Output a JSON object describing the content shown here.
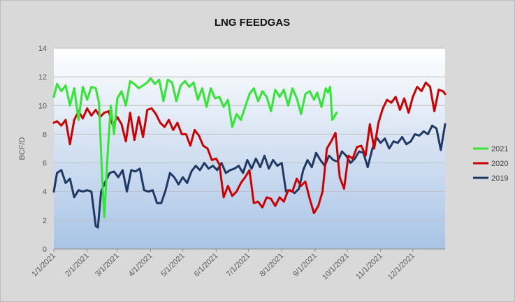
{
  "chart_data": {
    "type": "line",
    "title": "LNG FEEDGAS",
    "xlabel": "",
    "ylabel": "BCF/D",
    "ylim": [
      0,
      14
    ],
    "y_ticks": [
      "0",
      "2",
      "4",
      "6",
      "8",
      "10",
      "12",
      "14"
    ],
    "x_ticks": [
      "1/1/2021",
      "2/1/2021",
      "3/1/2021",
      "4/1/2021",
      "5/1/2021",
      "6/1/2021",
      "7/1/2021",
      "8/1/2021",
      "9/1/2021",
      "10/1/2021",
      "11/1/2021",
      "12/1/2021"
    ],
    "grid": true,
    "legend_position": "right",
    "plot_background": "gradient white-to-light-blue",
    "series": [
      {
        "name": "2021",
        "color": "#33e633",
        "points": [
          [
            "2021-01-01",
            10.6
          ],
          [
            "2021-01-04",
            11.5
          ],
          [
            "2021-01-08",
            11.0
          ],
          [
            "2021-01-12",
            11.4
          ],
          [
            "2021-01-16",
            10.0
          ],
          [
            "2021-01-20",
            11.2
          ],
          [
            "2021-01-24",
            9.0
          ],
          [
            "2021-01-28",
            11.3
          ],
          [
            "2021-02-01",
            10.4
          ],
          [
            "2021-02-05",
            11.3
          ],
          [
            "2021-02-09",
            11.2
          ],
          [
            "2021-02-12",
            10.2
          ],
          [
            "2021-02-15",
            5.0
          ],
          [
            "2021-02-17",
            2.2
          ],
          [
            "2021-02-20",
            6.5
          ],
          [
            "2021-02-23",
            10.0
          ],
          [
            "2021-02-26",
            8.0
          ],
          [
            "2021-03-01",
            10.5
          ],
          [
            "2021-03-05",
            11.0
          ],
          [
            "2021-03-09",
            10.0
          ],
          [
            "2021-03-13",
            11.7
          ],
          [
            "2021-03-17",
            11.5
          ],
          [
            "2021-03-21",
            11.2
          ],
          [
            "2021-03-25",
            11.4
          ],
          [
            "2021-03-29",
            11.6
          ],
          [
            "2021-04-01",
            11.9
          ],
          [
            "2021-04-05",
            11.5
          ],
          [
            "2021-04-09",
            11.8
          ],
          [
            "2021-04-13",
            10.3
          ],
          [
            "2021-04-17",
            11.8
          ],
          [
            "2021-04-21",
            11.6
          ],
          [
            "2021-04-25",
            10.3
          ],
          [
            "2021-04-29",
            11.4
          ],
          [
            "2021-05-03",
            11.7
          ],
          [
            "2021-05-07",
            11.3
          ],
          [
            "2021-05-11",
            11.6
          ],
          [
            "2021-05-15",
            10.4
          ],
          [
            "2021-05-19",
            11.2
          ],
          [
            "2021-05-23",
            9.9
          ],
          [
            "2021-05-27",
            11.2
          ],
          [
            "2021-05-31",
            10.5
          ],
          [
            "2021-06-04",
            10.6
          ],
          [
            "2021-06-08",
            9.9
          ],
          [
            "2021-06-12",
            10.4
          ],
          [
            "2021-06-16",
            8.5
          ],
          [
            "2021-06-20",
            9.4
          ],
          [
            "2021-06-24",
            9.0
          ],
          [
            "2021-06-28",
            9.9
          ],
          [
            "2021-07-02",
            10.8
          ],
          [
            "2021-07-06",
            11.2
          ],
          [
            "2021-07-10",
            10.3
          ],
          [
            "2021-07-14",
            11.0
          ],
          [
            "2021-07-18",
            10.6
          ],
          [
            "2021-07-22",
            9.6
          ],
          [
            "2021-07-26",
            11.1
          ],
          [
            "2021-07-30",
            10.6
          ],
          [
            "2021-08-03",
            11.1
          ],
          [
            "2021-08-07",
            10.0
          ],
          [
            "2021-08-11",
            11.2
          ],
          [
            "2021-08-15",
            10.5
          ],
          [
            "2021-08-19",
            9.4
          ],
          [
            "2021-08-23",
            10.8
          ],
          [
            "2021-08-27",
            11.0
          ],
          [
            "2021-08-31",
            10.4
          ],
          [
            "2021-09-03",
            10.9
          ],
          [
            "2021-09-07",
            9.9
          ],
          [
            "2021-09-11",
            11.2
          ],
          [
            "2021-09-13",
            10.9
          ],
          [
            "2021-09-15",
            11.3
          ],
          [
            "2021-09-17",
            9.0
          ],
          [
            "2021-09-19",
            9.2
          ],
          [
            "2021-09-21",
            9.5
          ]
        ]
      },
      {
        "name": "2020",
        "color": "#cc0000",
        "points": [
          [
            "2021-01-01",
            8.8
          ],
          [
            "2021-01-04",
            8.9
          ],
          [
            "2021-01-08",
            8.6
          ],
          [
            "2021-01-12",
            9.0
          ],
          [
            "2021-01-16",
            7.3
          ],
          [
            "2021-01-20",
            9.0
          ],
          [
            "2021-01-24",
            9.6
          ],
          [
            "2021-01-28",
            9.1
          ],
          [
            "2021-02-01",
            9.8
          ],
          [
            "2021-02-05",
            9.3
          ],
          [
            "2021-02-09",
            9.7
          ],
          [
            "2021-02-13",
            9.2
          ],
          [
            "2021-02-17",
            9.5
          ],
          [
            "2021-02-21",
            9.6
          ],
          [
            "2021-02-25",
            8.6
          ],
          [
            "2021-03-01",
            9.2
          ],
          [
            "2021-03-05",
            8.7
          ],
          [
            "2021-03-09",
            7.5
          ],
          [
            "2021-03-13",
            9.5
          ],
          [
            "2021-03-17",
            7.6
          ],
          [
            "2021-03-21",
            9.2
          ],
          [
            "2021-03-25",
            7.8
          ],
          [
            "2021-03-29",
            9.7
          ],
          [
            "2021-04-02",
            9.8
          ],
          [
            "2021-04-06",
            9.4
          ],
          [
            "2021-04-10",
            8.8
          ],
          [
            "2021-04-14",
            8.5
          ],
          [
            "2021-04-18",
            9.0
          ],
          [
            "2021-04-22",
            8.3
          ],
          [
            "2021-04-26",
            8.8
          ],
          [
            "2021-04-30",
            8.0
          ],
          [
            "2021-05-04",
            8.0
          ],
          [
            "2021-05-08",
            7.2
          ],
          [
            "2021-05-12",
            8.3
          ],
          [
            "2021-05-16",
            7.9
          ],
          [
            "2021-05-20",
            7.2
          ],
          [
            "2021-05-24",
            7.0
          ],
          [
            "2021-05-28",
            6.2
          ],
          [
            "2021-06-01",
            6.3
          ],
          [
            "2021-06-04",
            5.9
          ],
          [
            "2021-06-08",
            3.6
          ],
          [
            "2021-06-12",
            4.4
          ],
          [
            "2021-06-16",
            3.7
          ],
          [
            "2021-06-20",
            4.0
          ],
          [
            "2021-06-24",
            4.6
          ],
          [
            "2021-06-28",
            5.0
          ],
          [
            "2021-07-02",
            5.5
          ],
          [
            "2021-07-06",
            3.2
          ],
          [
            "2021-07-10",
            3.3
          ],
          [
            "2021-07-14",
            2.9
          ],
          [
            "2021-07-18",
            3.6
          ],
          [
            "2021-07-22",
            3.5
          ],
          [
            "2021-07-26",
            3.0
          ],
          [
            "2021-07-30",
            3.6
          ],
          [
            "2021-08-03",
            3.3
          ],
          [
            "2021-08-07",
            4.1
          ],
          [
            "2021-08-11",
            4.0
          ],
          [
            "2021-08-15",
            4.9
          ],
          [
            "2021-08-19",
            4.4
          ],
          [
            "2021-08-23",
            4.7
          ],
          [
            "2021-08-27",
            3.5
          ],
          [
            "2021-08-31",
            2.5
          ],
          [
            "2021-09-04",
            3.0
          ],
          [
            "2021-09-08",
            4.0
          ],
          [
            "2021-09-12",
            7.0
          ],
          [
            "2021-09-16",
            7.5
          ],
          [
            "2021-09-20",
            8.1
          ],
          [
            "2021-09-24",
            5.0
          ],
          [
            "2021-09-28",
            4.2
          ],
          [
            "2021-10-02",
            6.5
          ],
          [
            "2021-10-06",
            6.3
          ],
          [
            "2021-10-10",
            7.1
          ],
          [
            "2021-10-14",
            7.2
          ],
          [
            "2021-10-18",
            6.5
          ],
          [
            "2021-10-22",
            8.7
          ],
          [
            "2021-10-26",
            7.0
          ],
          [
            "2021-10-30",
            8.8
          ],
          [
            "2021-11-03",
            9.8
          ],
          [
            "2021-11-07",
            10.4
          ],
          [
            "2021-11-11",
            10.2
          ],
          [
            "2021-11-15",
            10.6
          ],
          [
            "2021-11-19",
            9.7
          ],
          [
            "2021-11-23",
            10.5
          ],
          [
            "2021-11-27",
            9.5
          ],
          [
            "2021-12-01",
            10.6
          ],
          [
            "2021-12-05",
            11.3
          ],
          [
            "2021-12-09",
            11.0
          ],
          [
            "2021-12-13",
            11.6
          ],
          [
            "2021-12-17",
            11.3
          ],
          [
            "2021-12-21",
            9.6
          ],
          [
            "2021-12-25",
            11.1
          ],
          [
            "2021-12-29",
            11.0
          ],
          [
            "2021-12-31",
            10.8
          ]
        ]
      },
      {
        "name": "2019",
        "color": "#1f3864",
        "points": [
          [
            "2021-01-01",
            4.0
          ],
          [
            "2021-01-04",
            5.3
          ],
          [
            "2021-01-08",
            5.5
          ],
          [
            "2021-01-12",
            4.6
          ],
          [
            "2021-01-16",
            4.9
          ],
          [
            "2021-01-20",
            3.6
          ],
          [
            "2021-01-24",
            4.1
          ],
          [
            "2021-01-28",
            4.0
          ],
          [
            "2021-02-01",
            4.1
          ],
          [
            "2021-02-05",
            4.0
          ],
          [
            "2021-02-09",
            1.6
          ],
          [
            "2021-02-11",
            1.5
          ],
          [
            "2021-02-14",
            4.0
          ],
          [
            "2021-02-18",
            4.7
          ],
          [
            "2021-02-22",
            5.3
          ],
          [
            "2021-02-26",
            5.4
          ],
          [
            "2021-03-02",
            5.0
          ],
          [
            "2021-03-06",
            5.5
          ],
          [
            "2021-03-10",
            4.0
          ],
          [
            "2021-03-14",
            5.5
          ],
          [
            "2021-03-18",
            5.4
          ],
          [
            "2021-03-22",
            5.6
          ],
          [
            "2021-03-26",
            4.1
          ],
          [
            "2021-03-30",
            4.0
          ],
          [
            "2021-04-03",
            4.1
          ],
          [
            "2021-04-07",
            3.2
          ],
          [
            "2021-04-11",
            3.2
          ],
          [
            "2021-04-15",
            4.1
          ],
          [
            "2021-04-19",
            5.3
          ],
          [
            "2021-04-23",
            5.0
          ],
          [
            "2021-04-27",
            4.5
          ],
          [
            "2021-05-01",
            5.0
          ],
          [
            "2021-05-05",
            4.6
          ],
          [
            "2021-05-09",
            5.4
          ],
          [
            "2021-05-13",
            5.8
          ],
          [
            "2021-05-17",
            5.5
          ],
          [
            "2021-05-21",
            6.0
          ],
          [
            "2021-05-25",
            5.6
          ],
          [
            "2021-05-29",
            5.8
          ],
          [
            "2021-06-02",
            5.5
          ],
          [
            "2021-06-06",
            6.0
          ],
          [
            "2021-06-10",
            5.3
          ],
          [
            "2021-06-14",
            5.5
          ],
          [
            "2021-06-18",
            5.6
          ],
          [
            "2021-06-22",
            5.8
          ],
          [
            "2021-06-26",
            5.3
          ],
          [
            "2021-06-30",
            6.2
          ],
          [
            "2021-07-04",
            5.6
          ],
          [
            "2021-07-08",
            6.3
          ],
          [
            "2021-07-12",
            5.7
          ],
          [
            "2021-07-16",
            6.5
          ],
          [
            "2021-07-20",
            5.6
          ],
          [
            "2021-07-24",
            6.2
          ],
          [
            "2021-07-28",
            5.8
          ],
          [
            "2021-08-01",
            6.0
          ],
          [
            "2021-08-05",
            4.0
          ],
          [
            "2021-08-09",
            4.1
          ],
          [
            "2021-08-13",
            3.9
          ],
          [
            "2021-08-17",
            4.2
          ],
          [
            "2021-08-21",
            5.5
          ],
          [
            "2021-08-25",
            6.2
          ],
          [
            "2021-08-29",
            5.7
          ],
          [
            "2021-09-02",
            6.7
          ],
          [
            "2021-09-06",
            6.2
          ],
          [
            "2021-09-10",
            5.8
          ],
          [
            "2021-09-14",
            6.5
          ],
          [
            "2021-09-18",
            6.2
          ],
          [
            "2021-09-22",
            6.1
          ],
          [
            "2021-09-26",
            6.8
          ],
          [
            "2021-09-30",
            6.5
          ],
          [
            "2021-10-04",
            6.0
          ],
          [
            "2021-10-08",
            6.3
          ],
          [
            "2021-10-12",
            6.8
          ],
          [
            "2021-10-16",
            6.7
          ],
          [
            "2021-10-20",
            5.7
          ],
          [
            "2021-10-24",
            6.9
          ],
          [
            "2021-10-28",
            7.8
          ],
          [
            "2021-11-01",
            7.4
          ],
          [
            "2021-11-05",
            7.7
          ],
          [
            "2021-11-09",
            7.0
          ],
          [
            "2021-11-13",
            7.5
          ],
          [
            "2021-11-17",
            7.4
          ],
          [
            "2021-11-21",
            7.8
          ],
          [
            "2021-11-25",
            7.3
          ],
          [
            "2021-11-29",
            7.5
          ],
          [
            "2021-12-03",
            8.0
          ],
          [
            "2021-12-07",
            7.9
          ],
          [
            "2021-12-11",
            8.2
          ],
          [
            "2021-12-15",
            8.0
          ],
          [
            "2021-12-19",
            8.6
          ],
          [
            "2021-12-23",
            8.4
          ],
          [
            "2021-12-27",
            6.9
          ],
          [
            "2021-12-31",
            8.7
          ]
        ]
      }
    ]
  }
}
